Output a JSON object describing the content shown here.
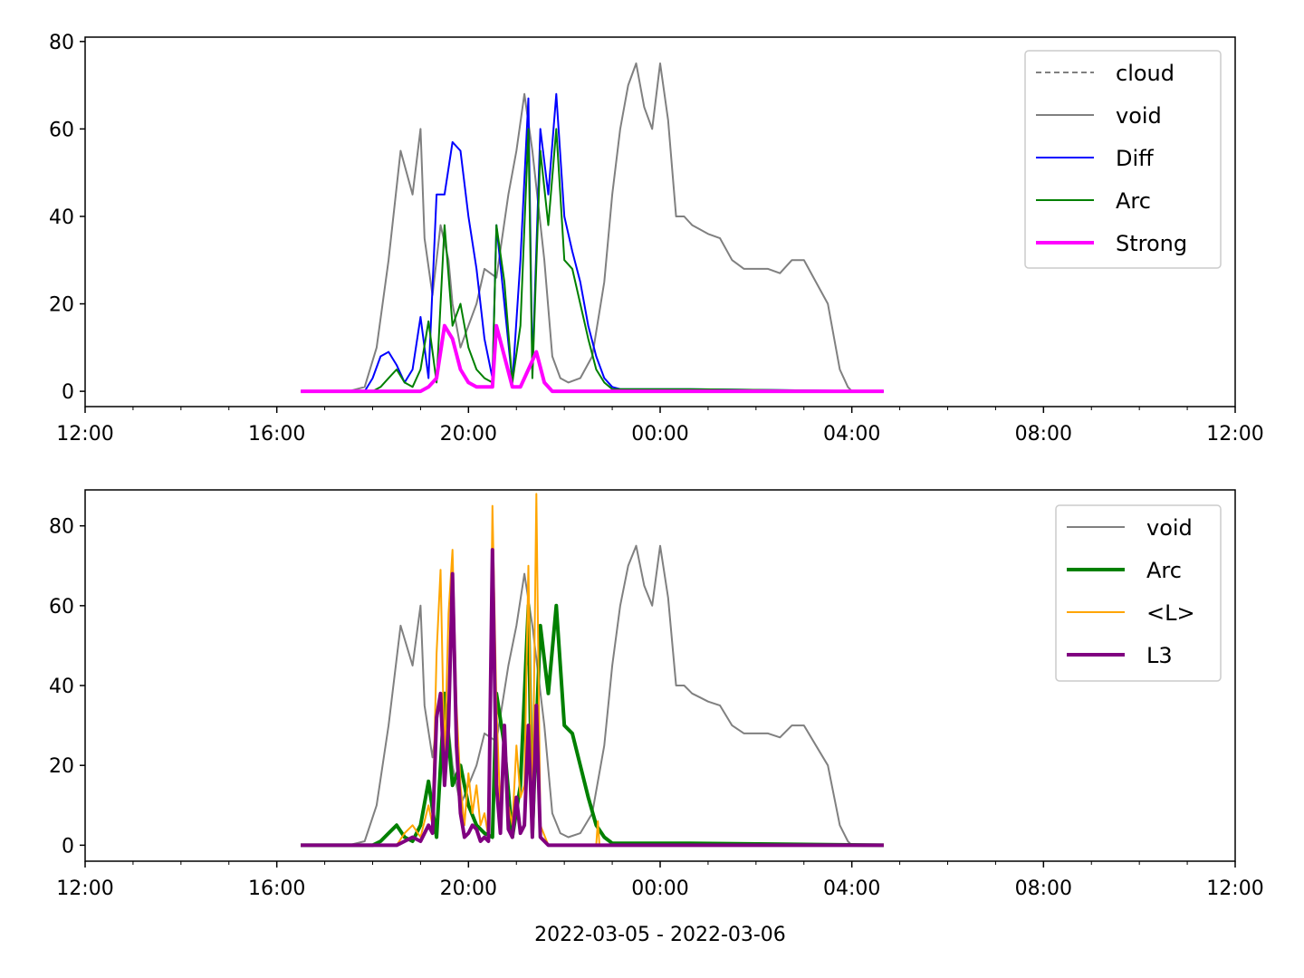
{
  "chart_data": [
    {
      "type": "line",
      "x_domain": [
        "2022-03-05 12:00",
        "2022-03-06 12:00"
      ],
      "ylim": [
        -3.5,
        81
      ],
      "yticks": [
        0,
        20,
        40,
        60,
        80
      ],
      "xticks": [
        "12:00",
        "16:00",
        "20:00",
        "00:00",
        "04:00",
        "08:00",
        "12:00"
      ],
      "xlabel": "",
      "legend_position": "top-right",
      "legend": [
        "cloud",
        "void",
        "Diff",
        "Arc",
        "Strong"
      ],
      "series": [
        {
          "name": "cloud",
          "color": "#808080",
          "style": "dashed",
          "x": [],
          "y": []
        },
        {
          "name": "void",
          "color": "#808080",
          "style": "solid",
          "x": [
            "17:30",
            "17:50",
            "18:05",
            "18:20",
            "18:35",
            "18:50",
            "19:00",
            "19:05",
            "19:15",
            "19:25",
            "19:35",
            "19:40",
            "19:50",
            "20:00",
            "20:10",
            "20:20",
            "20:35",
            "20:50",
            "21:00",
            "21:10",
            "21:20",
            "21:35",
            "21:45",
            "21:55",
            "22:05",
            "22:20",
            "22:35",
            "22:50",
            "23:00",
            "23:10",
            "23:20",
            "23:30",
            "23:40",
            "23:50",
            "00:00",
            "00:10",
            "00:20",
            "00:30",
            "00:40",
            "00:50",
            "01:00",
            "01:15",
            "01:30",
            "01:45",
            "02:00",
            "02:15",
            "02:30",
            "02:45",
            "03:00",
            "03:15",
            "03:30",
            "03:45",
            "03:55",
            "04:00",
            "04:10"
          ],
          "y": [
            0,
            1,
            10,
            30,
            55,
            45,
            60,
            35,
            22,
            38,
            30,
            20,
            10,
            15,
            20,
            28,
            26,
            45,
            55,
            68,
            55,
            30,
            8,
            3,
            2,
            3,
            8,
            25,
            45,
            60,
            70,
            75,
            65,
            60,
            75,
            62,
            40,
            40,
            38,
            37,
            36,
            35,
            30,
            28,
            28,
            28,
            27,
            30,
            30,
            25,
            20,
            5,
            1,
            0,
            0
          ]
        },
        {
          "name": "Diff",
          "color": "#0000ff",
          "style": "solid",
          "x": [
            "16:30",
            "17:50",
            "18:00",
            "18:10",
            "18:20",
            "18:30",
            "18:40",
            "18:50",
            "19:00",
            "19:10",
            "19:20",
            "19:30",
            "19:40",
            "19:50",
            "20:00",
            "20:10",
            "20:20",
            "20:30",
            "20:35",
            "20:45",
            "20:55",
            "21:05",
            "21:15",
            "21:20",
            "21:30",
            "21:40",
            "21:50",
            "22:00",
            "22:10",
            "22:20",
            "22:30",
            "22:40",
            "22:50",
            "23:00",
            "23:10",
            "23:30",
            "00:00",
            "00:30",
            "04:40"
          ],
          "y": [
            0,
            0,
            3,
            8,
            9,
            6,
            2,
            5,
            17,
            3,
            45,
            45,
            57,
            55,
            40,
            28,
            12,
            3,
            38,
            20,
            2,
            30,
            67,
            5,
            60,
            45,
            68,
            40,
            32,
            25,
            15,
            8,
            3,
            1,
            0.5,
            0.5,
            0.5,
            0.5,
            0
          ]
        },
        {
          "name": "Arc",
          "color": "#008000",
          "style": "solid",
          "x": [
            "16:30",
            "18:00",
            "18:10",
            "18:20",
            "18:30",
            "18:40",
            "18:50",
            "19:00",
            "19:10",
            "19:20",
            "19:30",
            "19:40",
            "19:50",
            "20:00",
            "20:10",
            "20:20",
            "20:30",
            "20:35",
            "20:45",
            "20:55",
            "21:05",
            "21:15",
            "21:20",
            "21:30",
            "21:40",
            "21:50",
            "22:00",
            "22:10",
            "22:20",
            "22:30",
            "22:40",
            "22:50",
            "23:00",
            "23:10",
            "23:30",
            "00:00",
            "00:30",
            "04:40"
          ],
          "y": [
            0,
            0,
            1,
            3,
            5,
            2,
            1,
            5,
            16,
            2,
            38,
            15,
            20,
            10,
            5,
            3,
            2,
            38,
            25,
            2,
            15,
            60,
            3,
            55,
            38,
            60,
            30,
            28,
            20,
            12,
            5,
            2,
            0.5,
            0.5,
            0.5,
            0.5,
            0.5,
            0
          ]
        },
        {
          "name": "Strong",
          "color": "#ff00ff",
          "style": "solid",
          "width": "thick",
          "x": [
            "16:30",
            "19:00",
            "19:10",
            "19:20",
            "19:30",
            "19:40",
            "19:50",
            "20:00",
            "20:10",
            "20:20",
            "20:30",
            "20:35",
            "20:45",
            "20:55",
            "21:05",
            "21:15",
            "21:25",
            "21:35",
            "21:45",
            "04:40"
          ],
          "y": [
            0,
            0,
            1,
            3,
            15,
            12,
            5,
            2,
            1,
            1,
            1,
            15,
            8,
            1,
            1,
            5,
            9,
            2,
            0,
            0
          ]
        }
      ]
    },
    {
      "type": "line",
      "x_domain": [
        "2022-03-05 12:00",
        "2022-03-06 12:00"
      ],
      "ylim": [
        -4,
        89
      ],
      "yticks": [
        0,
        20,
        40,
        60,
        80
      ],
      "xticks": [
        "12:00",
        "16:00",
        "20:00",
        "00:00",
        "04:00",
        "08:00",
        "12:00"
      ],
      "xlabel": "2022-03-05 - 2022-03-06",
      "legend_position": "top-right",
      "legend": [
        "void",
        "Arc",
        "<L>",
        "L3"
      ],
      "series": [
        {
          "name": "void",
          "color": "#808080",
          "style": "solid",
          "x": [
            "17:30",
            "17:50",
            "18:05",
            "18:20",
            "18:35",
            "18:50",
            "19:00",
            "19:05",
            "19:15",
            "19:25",
            "19:35",
            "19:40",
            "19:50",
            "20:00",
            "20:10",
            "20:20",
            "20:35",
            "20:50",
            "21:00",
            "21:10",
            "21:20",
            "21:35",
            "21:45",
            "21:55",
            "22:05",
            "22:20",
            "22:35",
            "22:50",
            "23:00",
            "23:10",
            "23:20",
            "23:30",
            "23:40",
            "23:50",
            "00:00",
            "00:10",
            "00:20",
            "00:30",
            "00:40",
            "00:50",
            "01:00",
            "01:15",
            "01:30",
            "01:45",
            "02:00",
            "02:15",
            "02:30",
            "02:45",
            "03:00",
            "03:15",
            "03:30",
            "03:45",
            "03:55",
            "04:00",
            "04:10"
          ],
          "y": [
            0,
            1,
            10,
            30,
            55,
            45,
            60,
            35,
            22,
            38,
            30,
            20,
            10,
            15,
            20,
            28,
            26,
            45,
            55,
            68,
            55,
            30,
            8,
            3,
            2,
            3,
            8,
            25,
            45,
            60,
            70,
            75,
            65,
            60,
            75,
            62,
            40,
            40,
            38,
            37,
            36,
            35,
            30,
            28,
            28,
            28,
            27,
            30,
            30,
            25,
            20,
            5,
            1,
            0,
            0
          ]
        },
        {
          "name": "Arc",
          "color": "#008000",
          "style": "solid",
          "width": "thick",
          "x": [
            "16:30",
            "18:00",
            "18:10",
            "18:20",
            "18:30",
            "18:40",
            "18:50",
            "19:00",
            "19:10",
            "19:20",
            "19:30",
            "19:40",
            "19:50",
            "20:00",
            "20:10",
            "20:20",
            "20:30",
            "20:35",
            "20:45",
            "20:55",
            "21:05",
            "21:15",
            "21:20",
            "21:30",
            "21:40",
            "21:50",
            "22:00",
            "22:10",
            "22:20",
            "22:30",
            "22:40",
            "22:50",
            "23:00",
            "23:10",
            "23:30",
            "00:00",
            "00:30",
            "04:40"
          ],
          "y": [
            0,
            0,
            1,
            3,
            5,
            2,
            1,
            5,
            16,
            2,
            38,
            15,
            20,
            10,
            5,
            3,
            2,
            38,
            25,
            2,
            15,
            60,
            3,
            55,
            38,
            60,
            30,
            28,
            20,
            12,
            5,
            2,
            0.5,
            0.5,
            0.5,
            0.5,
            0.5,
            0
          ]
        },
        {
          "name": "<L>",
          "color": "#ffa500",
          "style": "solid",
          "x": [
            "16:30",
            "18:30",
            "18:40",
            "18:50",
            "19:00",
            "19:10",
            "19:15",
            "19:20",
            "19:25",
            "19:30",
            "19:35",
            "19:40",
            "19:45",
            "19:50",
            "19:55",
            "20:00",
            "20:05",
            "20:10",
            "20:15",
            "20:20",
            "20:25",
            "20:30",
            "20:35",
            "20:40",
            "20:45",
            "20:50",
            "20:55",
            "21:00",
            "21:05",
            "21:10",
            "21:15",
            "21:20",
            "21:25",
            "21:30",
            "21:40",
            "22:40",
            "22:42",
            "22:44",
            "04:40"
          ],
          "y": [
            0,
            0,
            3,
            5,
            2,
            10,
            5,
            48,
            69,
            20,
            58,
            74,
            35,
            15,
            5,
            18,
            8,
            15,
            5,
            8,
            2,
            85,
            35,
            8,
            30,
            10,
            5,
            25,
            12,
            15,
            70,
            5,
            88,
            5,
            0,
            0,
            6,
            0,
            0
          ]
        },
        {
          "name": "L3",
          "color": "#800080",
          "style": "solid",
          "width": "thick",
          "x": [
            "16:30",
            "18:30",
            "18:40",
            "18:50",
            "19:00",
            "19:10",
            "19:15",
            "19:20",
            "19:25",
            "19:30",
            "19:35",
            "19:40",
            "19:45",
            "19:50",
            "19:55",
            "20:00",
            "20:05",
            "20:10",
            "20:15",
            "20:20",
            "20:25",
            "20:30",
            "20:35",
            "20:40",
            "20:45",
            "20:50",
            "20:55",
            "21:00",
            "21:05",
            "21:10",
            "21:15",
            "21:20",
            "21:25",
            "21:30",
            "21:40",
            "04:40"
          ],
          "y": [
            0,
            0,
            1,
            2,
            1,
            5,
            3,
            32,
            38,
            15,
            30,
            68,
            25,
            8,
            2,
            3,
            5,
            4,
            1,
            2,
            1,
            74,
            15,
            3,
            30,
            4,
            2,
            12,
            3,
            5,
            30,
            2,
            35,
            2,
            0,
            0
          ]
        }
      ]
    }
  ]
}
